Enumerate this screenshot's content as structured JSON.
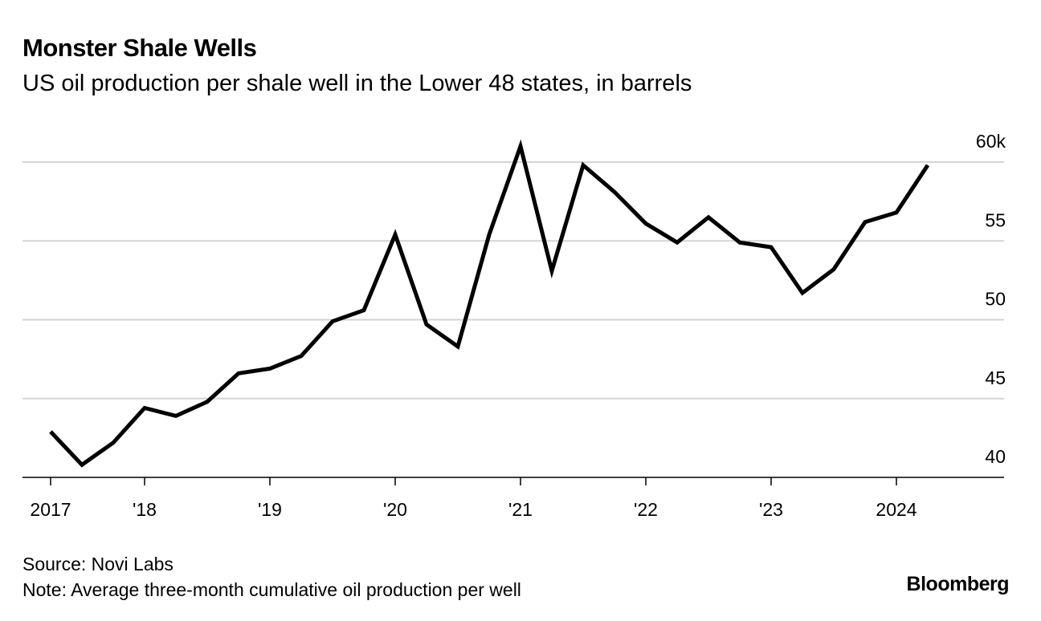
{
  "chart_data": {
    "type": "line",
    "title": "Monster Shale Wells",
    "subtitle": "US oil production per shale well in the Lower 48 states, in barrels",
    "xlabel": "",
    "ylabel": "",
    "ylim": [
      40,
      60
    ],
    "grid": true,
    "y_ticks": [
      {
        "value": 60,
        "label": "60k"
      },
      {
        "value": 55,
        "label": "55"
      },
      {
        "value": 50,
        "label": "50"
      },
      {
        "value": 45,
        "label": "45"
      },
      {
        "value": 40,
        "label": "40"
      }
    ],
    "x_ticks": [
      {
        "x": "2017 Q2",
        "label": "2017"
      },
      {
        "x": "2018 Q1",
        "label": "'18"
      },
      {
        "x": "2019 Q1",
        "label": "'19"
      },
      {
        "x": "2020 Q1",
        "label": "'20"
      },
      {
        "x": "2021 Q1",
        "label": "'21"
      },
      {
        "x": "2022 Q1",
        "label": "'22"
      },
      {
        "x": "2023 Q1",
        "label": "'23"
      },
      {
        "x": "2024 Q1",
        "label": "2024"
      }
    ],
    "series": [
      {
        "color": "#000000",
        "x": [
          "2017 Q2",
          "2017 Q3",
          "2017 Q4",
          "2018 Q1",
          "2018 Q2",
          "2018 Q3",
          "2018 Q4",
          "2019 Q1",
          "2019 Q2",
          "2019 Q3",
          "2019 Q4",
          "2020 Q1",
          "2020 Q2",
          "2020 Q3",
          "2020 Q4",
          "2021 Q1",
          "2021 Q2",
          "2021 Q3",
          "2021 Q4",
          "2022 Q1",
          "2022 Q2",
          "2022 Q3",
          "2022 Q4",
          "2023 Q1",
          "2023 Q2",
          "2023 Q3",
          "2023 Q4",
          "2024 Q1",
          "2024 Q2"
        ],
        "values": [
          42.9,
          40.8,
          42.2,
          44.4,
          43.9,
          44.8,
          46.6,
          46.9,
          47.7,
          49.9,
          50.6,
          55.4,
          49.7,
          48.3,
          55.4,
          61.0,
          53.1,
          59.8,
          58.1,
          56.1,
          54.9,
          56.5,
          54.9,
          54.6,
          51.7,
          53.2,
          56.2,
          56.8,
          59.8
        ]
      }
    ]
  },
  "footer": {
    "source": "Source: Novi Labs",
    "note": "Note: Average three-month cumulative oil production per well",
    "logo": "Bloomberg"
  }
}
